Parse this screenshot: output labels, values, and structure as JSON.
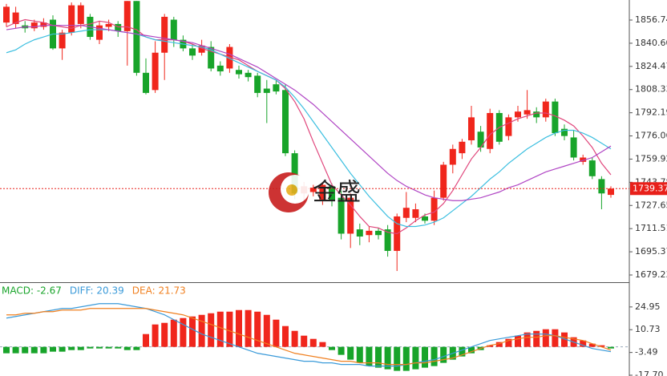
{
  "chart_data": [
    {
      "type": "candlestick",
      "up_color": "#f0261c",
      "down_color": "#18a42a",
      "ylim": [
        1674.2,
        1870.7
      ],
      "yticks": [
        1856.74,
        {
          "value": 1840.6,
          "label": "1840.60"
        },
        1824.47,
        1808.33,
        1792.19,
        1776.06,
        1759.92,
        1743.78,
        1727.65,
        1711.51,
        1695.37,
        1679.23
      ],
      "last_price": 1739.37,
      "last_color": "#e8201a",
      "watermark": "金盛",
      "open": [
        1855,
        1854,
        1853,
        1851,
        1852,
        1857,
        1837,
        1848,
        1854,
        1859,
        1843,
        1852,
        1854,
        1849,
        1870,
        1820,
        1808,
        1834,
        1857,
        1843,
        1837,
        1834,
        1838,
        1825,
        1823,
        1822,
        1820,
        1818,
        1809,
        1812,
        1808,
        1764,
        1736,
        1737,
        1731,
        1741,
        1733,
        1708,
        1711,
        1707,
        1710,
        1711,
        1696,
        1719,
        1719,
        1720,
        1717,
        1733,
        1756,
        1764,
        1773,
        1779,
        1767,
        1792,
        1776,
        1789,
        1791,
        1793,
        1789,
        1800,
        1781,
        1775,
        1758,
        1759,
        1746,
        1735
      ],
      "high": [
        1868,
        1866,
        1856,
        1857,
        1858,
        1860,
        1850,
        1869,
        1869,
        1861,
        1856,
        1857,
        1856,
        1870,
        1870,
        1830,
        1842,
        1861,
        1859,
        1846,
        1840,
        1843,
        1842,
        1828,
        1840,
        1825,
        1822,
        1820,
        1815,
        1815,
        1812,
        1766,
        1744,
        1742,
        1744,
        1743,
        1738,
        1736,
        1715,
        1713,
        1712,
        1714,
        1722,
        1737,
        1729,
        1722,
        1738,
        1758,
        1770,
        1774,
        1797,
        1783,
        1795,
        1794,
        1791,
        1797,
        1808,
        1796,
        1802,
        1802,
        1784,
        1780,
        1763,
        1761,
        1748,
        1741
      ],
      "low": [
        1852,
        1851,
        1848,
        1849,
        1850,
        1836,
        1829,
        1846,
        1851,
        1843,
        1840,
        1849,
        1845,
        1825,
        1818,
        1805,
        1806,
        1815,
        1838,
        1835,
        1829,
        1832,
        1821,
        1818,
        1820,
        1816,
        1814,
        1803,
        1785,
        1805,
        1762,
        1732,
        1730,
        1734,
        1728,
        1727,
        1704,
        1698,
        1700,
        1702,
        1704,
        1692,
        1682,
        1716,
        1716,
        1715,
        1714,
        1731,
        1750,
        1760,
        1770,
        1765,
        1764,
        1770,
        1773,
        1786,
        1788,
        1785,
        1786,
        1776,
        1773,
        1759,
        1756,
        1746,
        1725,
        1733
      ],
      "close": [
        1866,
        1862,
        1851,
        1855,
        1855,
        1837,
        1848,
        1867,
        1867,
        1845,
        1853,
        1854,
        1849,
        1870,
        1820,
        1806,
        1834,
        1859,
        1843,
        1837,
        1832,
        1839,
        1823,
        1821,
        1838,
        1819,
        1817,
        1806,
        1806,
        1807,
        1764,
        1736,
        1741,
        1740,
        1742,
        1731,
        1708,
        1733,
        1706,
        1710,
        1707,
        1696,
        1720,
        1726,
        1725,
        1717,
        1733,
        1756,
        1767,
        1772,
        1789,
        1768,
        1792,
        1772,
        1789,
        1793,
        1794,
        1789,
        1800,
        1778,
        1776,
        1761,
        1761,
        1748,
        1736,
        1739.37
      ],
      "series": [
        {
          "color": "#e0457b",
          "values": [
            1852,
            1855,
            1857,
            1856,
            1855,
            1853,
            1852,
            1851,
            1853,
            1854,
            1856,
            1855,
            1852,
            1852,
            1850,
            1845,
            1843,
            1843,
            1843,
            1842,
            1840,
            1837,
            1835,
            1833,
            1831,
            1829,
            1825,
            1821,
            1818,
            1815,
            1809,
            1800,
            1788,
            1772,
            1757,
            1742,
            1735,
            1728,
            1720,
            1713,
            1712,
            1709,
            1708,
            1712,
            1717,
            1721,
            1723,
            1729,
            1738,
            1749,
            1760,
            1768,
            1777,
            1782,
            1785,
            1788,
            1790,
            1792,
            1792,
            1790,
            1787,
            1783,
            1776,
            1768,
            1757,
            1749
          ]
        },
        {
          "color": "#3cbfe0",
          "values": [
            1834,
            1836,
            1840,
            1843,
            1845,
            1847,
            1847,
            1848,
            1849,
            1850,
            1850,
            1850,
            1849,
            1848,
            1847,
            1845,
            1843,
            1842,
            1841,
            1840,
            1839,
            1838,
            1836,
            1833,
            1830,
            1827,
            1824,
            1821,
            1818,
            1815,
            1810,
            1803,
            1795,
            1786,
            1777,
            1768,
            1759,
            1750,
            1742,
            1734,
            1727,
            1720,
            1715,
            1713,
            1713,
            1714,
            1716,
            1719,
            1724,
            1729,
            1734,
            1740,
            1746,
            1751,
            1757,
            1762,
            1767,
            1771,
            1775,
            1778,
            1780,
            1780,
            1778,
            1775,
            1771,
            1767
          ]
        },
        {
          "color": "#b045c4",
          "values": [
            1850,
            1851,
            1852,
            1852,
            1853,
            1853,
            1853,
            1853,
            1853,
            1852,
            1851,
            1850,
            1849,
            1848,
            1847,
            1846,
            1845,
            1844,
            1843,
            1842,
            1841,
            1839,
            1837,
            1835,
            1833,
            1830,
            1827,
            1824,
            1820,
            1816,
            1812,
            1808,
            1803,
            1798,
            1792,
            1786,
            1780,
            1774,
            1768,
            1762,
            1756,
            1750,
            1745,
            1741,
            1738,
            1735,
            1733,
            1732,
            1731,
            1731,
            1732,
            1733,
            1735,
            1737,
            1740,
            1742,
            1745,
            1748,
            1751,
            1753,
            1755,
            1757,
            1759,
            1761,
            1765,
            1769
          ]
        }
      ]
    },
    {
      "type": "macd",
      "ylim": [
        -18.2,
        38.9
      ],
      "yticks": [
        24.95,
        10.73,
        -3.49,
        {
          "value": -17.7,
          "label": "-17.70"
        }
      ],
      "series": [
        {
          "name": "MACD: -2.67",
          "color": "#18a42a",
          "up_color": "#f0261c",
          "values": [
            -4,
            -4,
            -4,
            -4,
            -4,
            -3,
            -3,
            -2,
            -2,
            -1,
            -1,
            -1,
            -1,
            -2,
            -2,
            8,
            14,
            15,
            17,
            18,
            19,
            20,
            21,
            22,
            22,
            23,
            23,
            22,
            20,
            17,
            13,
            10,
            7,
            5,
            3,
            -2,
            -5,
            -8,
            -10,
            -12,
            -13,
            -14,
            -15,
            -15,
            -14,
            -13,
            -12,
            -10,
            -8,
            -6,
            -4,
            -2,
            1,
            3,
            5,
            7,
            9,
            10,
            11,
            11,
            9,
            6,
            4,
            2,
            1,
            -1
          ]
        },
        {
          "name": "DIFF: 20.39",
          "color": "#3a9ad9",
          "values": [
            18,
            19,
            20,
            21,
            22,
            23,
            24,
            24,
            25,
            26,
            27,
            27,
            27,
            26,
            25,
            24,
            22,
            20,
            17,
            14,
            11,
            8,
            6,
            4,
            2,
            0,
            -2,
            -4,
            -5,
            -6,
            -7,
            -8,
            -9,
            -9,
            -10,
            -10,
            -11,
            -11,
            -11,
            -12,
            -12,
            -12,
            -12,
            -11,
            -10,
            -9,
            -8,
            -6,
            -4,
            -2,
            0,
            2,
            4,
            5,
            6,
            7,
            8,
            8,
            8,
            7,
            5,
            3,
            1,
            -1,
            -2,
            -3
          ]
        },
        {
          "name": "DEA: 21.73",
          "color": "#f08020",
          "values": [
            20,
            20,
            21,
            21,
            22,
            22,
            23,
            23,
            23,
            24,
            24,
            24,
            24,
            24,
            24,
            24,
            23,
            22,
            21,
            20,
            18,
            16,
            14,
            12,
            10,
            8,
            6,
            4,
            2,
            0,
            -2,
            -4,
            -5,
            -6,
            -7,
            -8,
            -9,
            -9,
            -10,
            -10,
            -10,
            -11,
            -11,
            -11,
            -10,
            -10,
            -9,
            -8,
            -7,
            -5,
            -3,
            -1,
            1,
            2,
            4,
            5,
            6,
            6,
            7,
            7,
            6,
            5,
            4,
            2,
            0,
            -2
          ]
        }
      ]
    }
  ]
}
